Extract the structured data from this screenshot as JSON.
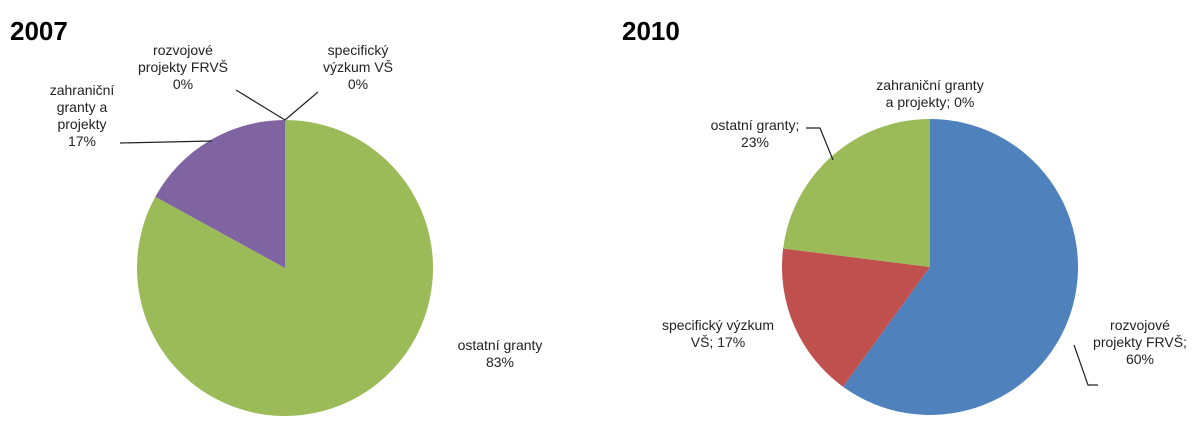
{
  "chart_data": [
    {
      "type": "pie",
      "title": "2007",
      "categories": [
        "ostatní granty",
        "zahraniční granty a projekty",
        "rozvojové projekty FRVŠ",
        "specifický výzkum VŠ"
      ],
      "values": [
        83,
        17,
        0,
        0
      ],
      "value_labels": [
        "83%",
        "17%",
        "0%",
        "0%"
      ],
      "colors": [
        "#9bbb59",
        "#8064a2",
        "#4f81bd",
        "#c0504d"
      ]
    },
    {
      "type": "pie",
      "title": "2010",
      "categories": [
        "rozvojové projekty FRVŠ",
        "specifický výzkum VŠ",
        "ostatní granty",
        "zahraniční granty a projekty"
      ],
      "values": [
        60,
        17,
        23,
        0
      ],
      "value_labels": [
        "60%",
        "17%",
        "23%",
        "0%"
      ],
      "label_separator": "; ",
      "colors": [
        "#4f81bd",
        "#c0504d",
        "#9bbb59",
        "#8064a2"
      ]
    }
  ]
}
